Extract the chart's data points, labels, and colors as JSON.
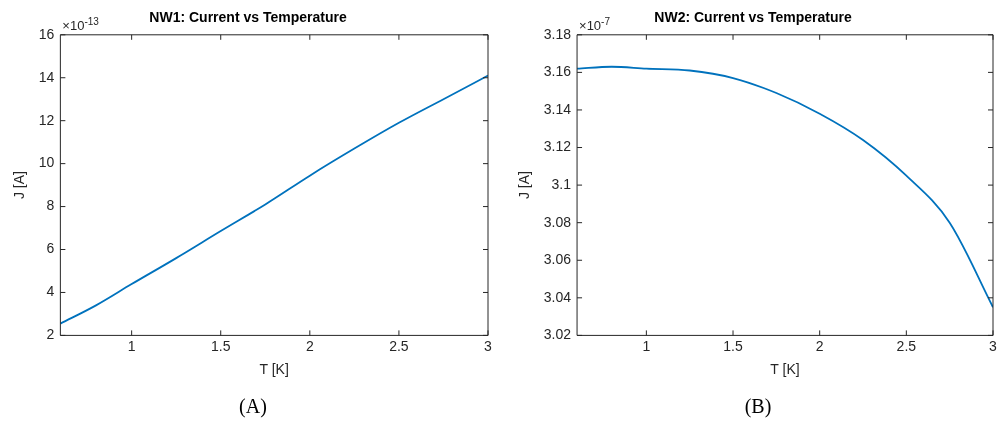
{
  "chart_data": [
    {
      "type": "line",
      "title": "NW1: Current vs Temperature",
      "xlabel": "T [K]",
      "ylabel": "J [A]",
      "annotations": [
        "×10$^{-13}$",
        "(A)"
      ],
      "x": [
        0.6,
        0.8,
        1,
        1.25,
        1.5,
        1.75,
        2,
        2.25,
        2.5,
        2.75,
        3
      ],
      "series": [
        {
          "color": "#0072bd",
          "values": [
            2.55,
            3.4,
            4.39,
            5.6,
            6.86,
            8.1,
            9.44,
            10.7,
            11.9,
            13.0,
            14.1
          ]
        }
      ],
      "xlim": [
        0.6,
        3
      ],
      "xticks": [
        1,
        1.5,
        2,
        2.5,
        3
      ],
      "ylim": [
        2,
        16
      ],
      "yticks": [
        2,
        4,
        6,
        8,
        10,
        12,
        14,
        16
      ],
      "grid": false,
      "legend": false,
      "marker": "none",
      "line_style": "solid"
    },
    {
      "type": "line",
      "title": "NW2: Current vs Temperature",
      "xlabel": "T [K]",
      "ylabel": "J [A]",
      "annotations": [
        "×10$^{-7}$",
        "(B)"
      ],
      "x": [
        0.6,
        0.8,
        1,
        1.25,
        1.5,
        1.75,
        2,
        2.25,
        2.5,
        2.75,
        3
      ],
      "series": [
        {
          "color": "#0072bd",
          "values": [
            3.162,
            3.163,
            3.162,
            3.161,
            3.157,
            3.149,
            3.138,
            3.124,
            3.105,
            3.08,
            3.035
          ]
        }
      ],
      "xlim": [
        0.6,
        3
      ],
      "xticks": [
        1,
        1.5,
        2,
        2.5,
        3
      ],
      "ylim": [
        3.02,
        3.18
      ],
      "yticks": [
        3.02,
        3.04,
        3.06,
        3.08,
        3.1,
        3.12,
        3.14,
        3.16,
        3.18
      ],
      "grid": false,
      "legend": false,
      "marker": "none",
      "line_style": "solid"
    }
  ]
}
